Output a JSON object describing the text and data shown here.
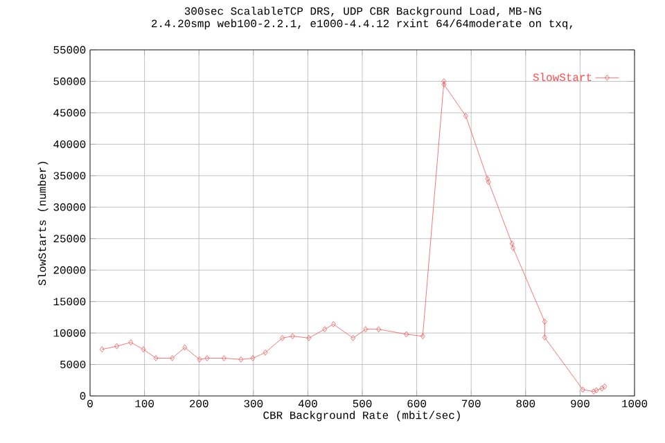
{
  "chart_data": {
    "type": "line",
    "title": "300sec ScalableTCP DRS, UDP CBR Background Load, MB-NG",
    "subtitle": "2.4.20smp web100-2.2.1, e1000-4.4.12 rxint 64/64moderate on txq,",
    "xlabel": "CBR Background Rate (mbit/sec)",
    "ylabel": "SlowStarts (number)",
    "xlim": [
      0,
      1000
    ],
    "xticks": [
      0,
      100,
      200,
      300,
      400,
      500,
      600,
      700,
      800,
      900,
      1000
    ],
    "ylim": [
      0,
      55000
    ],
    "yticks": [
      0,
      5000,
      10000,
      15000,
      20000,
      25000,
      30000,
      35000,
      40000,
      45000,
      50000,
      55000
    ],
    "grid": true,
    "legend": "top right",
    "marker": "diamond",
    "line_style": "solid",
    "series": [
      {
        "name": "SlowStart",
        "color": "#f25555",
        "x": [
          22,
          49,
          75,
          98,
          121,
          151,
          174,
          201,
          215,
          246,
          277,
          299,
          322,
          353,
          372,
          402,
          431,
          447,
          483,
          506,
          530,
          581,
          611,
          650,
          650,
          690,
          730,
          732,
          775,
          777,
          835,
          835,
          905,
          925,
          930,
          940,
          945
        ],
        "values": [
          7400,
          7900,
          8500,
          7400,
          6000,
          6000,
          7700,
          5800,
          6000,
          6000,
          5800,
          6000,
          6900,
          9200,
          9500,
          9200,
          10600,
          11400,
          9200,
          10600,
          10600,
          9800,
          9500,
          50000,
          49500,
          44500,
          34500,
          34000,
          24200,
          23500,
          11800,
          9300,
          1000,
          700,
          900,
          1200,
          1500
        ]
      }
    ]
  }
}
